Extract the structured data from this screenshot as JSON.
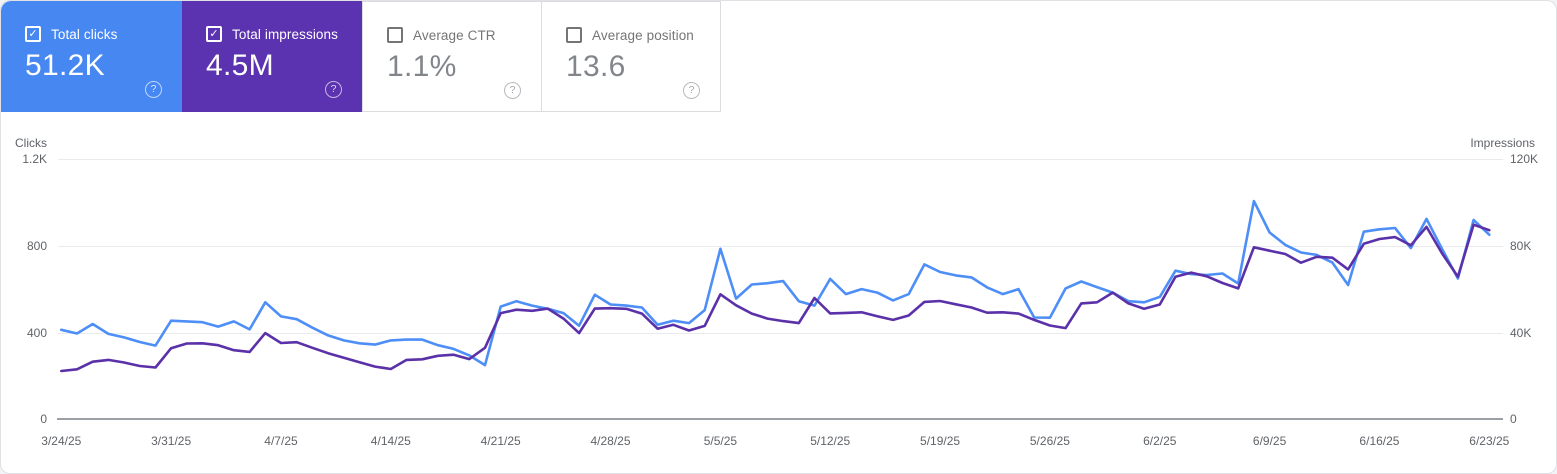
{
  "cards": [
    {
      "label": "Total clicks",
      "value": "51.2K",
      "selected": true,
      "color": "#4787f2"
    },
    {
      "label": "Total impressions",
      "value": "4.5M",
      "selected": true,
      "color": "#5b32af"
    },
    {
      "label": "Average CTR",
      "value": "1.1%",
      "selected": false,
      "color": "#ffffff"
    },
    {
      "label": "Average position",
      "value": "13.6",
      "selected": false,
      "color": "#ffffff"
    }
  ],
  "icons": {
    "help": "?",
    "check": "✓"
  },
  "chart_data": {
    "type": "line",
    "frequency": "daily",
    "start_date": "3/24/25",
    "end_date": "6/23/25",
    "x_labels": [
      "3/24/25",
      "3/31/25",
      "4/7/25",
      "4/14/25",
      "4/21/25",
      "4/28/25",
      "5/5/25",
      "5/12/25",
      "5/19/25",
      "5/26/25",
      "6/2/25",
      "6/9/25",
      "6/16/25",
      "6/23/25"
    ],
    "left_axis": {
      "title": "Clicks",
      "ticks": [
        "1.2K",
        "800",
        "400",
        "0"
      ],
      "max": 1200
    },
    "right_axis": {
      "title": "Impressions",
      "ticks": [
        "120K",
        "80K",
        "40K",
        "0"
      ],
      "max": 120000
    },
    "grid": true,
    "series": [
      {
        "name": "Total clicks",
        "axis": "left",
        "color": "#4d8ef7",
        "unit": "clicks",
        "values": [
          413,
          396,
          440,
          394,
          378,
          357,
          340,
          455,
          452,
          448,
          428,
          452,
          415,
          540,
          475,
          462,
          423,
          387,
          364,
          351,
          345,
          364,
          368,
          368,
          342,
          325,
          295,
          250,
          520,
          545,
          525,
          510,
          490,
          432,
          575,
          530,
          525,
          516,
          436,
          455,
          444,
          504,
          787,
          557,
          622,
          628,
          638,
          545,
          525,
          648,
          578,
          601,
          585,
          549,
          578,
          715,
          680,
          664,
          655,
          609,
          578,
          601,
          470,
          469,
          604,
          636,
          610,
          585,
          545,
          540,
          565,
          686,
          670,
          666,
          673,
          627,
          1007,
          862,
          805,
          770,
          759,
          723,
          620,
          866,
          877,
          883,
          790,
          925,
          785,
          650,
          920,
          852
        ]
      },
      {
        "name": "Total impressions",
        "axis": "right",
        "color": "#5a31a8",
        "unit": "thousands",
        "values": [
          22.3,
          23.1,
          26.6,
          27.4,
          26.2,
          24.6,
          23.9,
          32.8,
          35.0,
          35.1,
          34.2,
          31.9,
          31.1,
          39.8,
          35.2,
          35.6,
          33.0,
          30.5,
          28.4,
          26.3,
          24.3,
          23.2,
          27.4,
          27.7,
          29.3,
          29.8,
          27.8,
          33.0,
          49.0,
          50.6,
          50.1,
          51.1,
          46.5,
          39.8,
          51.1,
          51.3,
          51.0,
          48.8,
          41.8,
          43.6,
          41.0,
          43.1,
          57.7,
          52.6,
          48.8,
          46.5,
          45.3,
          44.4,
          56.0,
          48.9,
          49.1,
          49.4,
          47.6,
          45.9,
          47.9,
          54.2,
          54.6,
          53.1,
          51.6,
          49.2,
          49.4,
          48.8,
          45.9,
          43.3,
          42.1,
          53.5,
          54.0,
          58.5,
          53.5,
          51.0,
          53.0,
          65.8,
          67.7,
          66.0,
          62.9,
          60.4,
          79.4,
          77.8,
          76.3,
          72.3,
          75.0,
          74.6,
          69.2,
          81.0,
          83.2,
          84.1,
          80.3,
          88.8,
          76.5,
          65.8,
          89.8,
          87.3
        ]
      }
    ]
  }
}
